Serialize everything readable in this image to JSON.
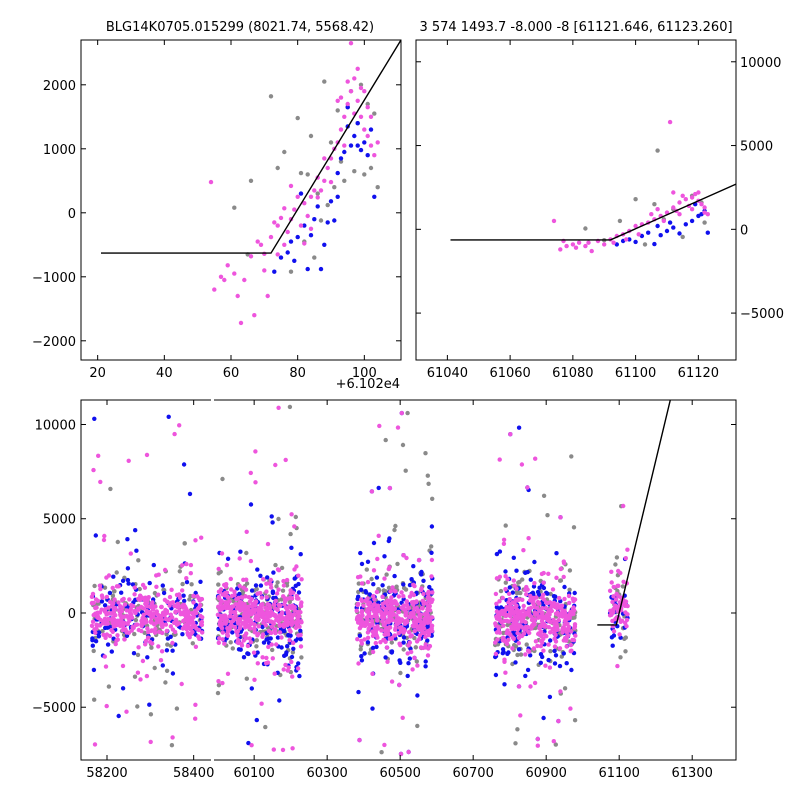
{
  "colors": {
    "gray": "#8a8a8a",
    "blue": "#1010ee",
    "pink": "#ee55dd",
    "model": "#000000"
  },
  "chart_data": [
    {
      "type": "scatter",
      "title": "BLG14K0705.015299 (8021.74, 5568.42)",
      "xlim": [
        15,
        111
      ],
      "ylim": [
        -2300,
        2700
      ],
      "x_offset_label": "+6.102e4",
      "xticks": [
        20,
        40,
        60,
        80,
        100
      ],
      "yticks": [
        -2000,
        -1000,
        0,
        1000,
        2000
      ],
      "xtick_labels": [
        "20",
        "40",
        "60",
        "80",
        "100"
      ],
      "ytick_labels": [
        "−2000",
        "−1000",
        "0",
        "1000",
        "2000"
      ],
      "model": {
        "x": [
          21,
          72,
          111
        ],
        "y": [
          -630,
          -630,
          2700
        ]
      },
      "series": [
        {
          "name": "pink",
          "color_key": "pink",
          "points": [
            [
              54,
              480
            ],
            [
              55,
              -1200
            ],
            [
              57,
              -1000
            ],
            [
              58,
              -1050
            ],
            [
              59,
              -820
            ],
            [
              61,
              -950
            ],
            [
              62,
              -1300
            ],
            [
              63,
              -1720
            ],
            [
              64,
              -1050
            ],
            [
              66,
              -680
            ],
            [
              67,
              -1600
            ],
            [
              68,
              -450
            ],
            [
              69,
              -500
            ],
            [
              70,
              -640
            ],
            [
              71,
              -1300
            ],
            [
              72,
              -380
            ],
            [
              73,
              -150
            ],
            [
              74,
              -200
            ],
            [
              75,
              -80
            ],
            [
              76,
              -500
            ],
            [
              77,
              -300
            ],
            [
              78,
              -100
            ],
            [
              79,
              50
            ],
            [
              80,
              250
            ],
            [
              81,
              -200
            ],
            [
              82,
              150
            ],
            [
              83,
              -50
            ],
            [
              84,
              250
            ],
            [
              85,
              350
            ],
            [
              86,
              550
            ],
            [
              87,
              350
            ],
            [
              88,
              500
            ],
            [
              89,
              700
            ],
            [
              90,
              850
            ],
            [
              91,
              1000
            ],
            [
              92,
              1100
            ],
            [
              93,
              1300
            ],
            [
              94,
              1500
            ],
            [
              95,
              1700
            ],
            [
              96,
              1900
            ],
            [
              97,
              2100
            ],
            [
              98,
              1750
            ],
            [
              99,
              1500
            ],
            [
              100,
              1300
            ],
            [
              101,
              1200
            ],
            [
              102,
              1050
            ],
            [
              103,
              900
            ],
            [
              104,
              1100
            ],
            [
              93,
              1800
            ],
            [
              95,
              2050
            ],
            [
              97,
              1550
            ],
            [
              99,
              1950
            ],
            [
              96,
              2650
            ],
            [
              101,
              1650
            ],
            [
              92,
              1750
            ],
            [
              98,
              2250
            ],
            [
              100,
              1900
            ],
            [
              102,
              1500
            ],
            [
              94,
              1050
            ],
            [
              90,
              480
            ],
            [
              88,
              850
            ],
            [
              86,
              240
            ],
            [
              84,
              -250
            ],
            [
              82,
              -480
            ],
            [
              78,
              420
            ],
            [
              76,
              70
            ],
            [
              74,
              -650
            ],
            [
              70,
              -900
            ]
          ]
        },
        {
          "name": "blue",
          "color_key": "blue",
          "points": [
            [
              73,
              -920
            ],
            [
              75,
              -700
            ],
            [
              77,
              -620
            ],
            [
              79,
              -750
            ],
            [
              80,
              -380
            ],
            [
              82,
              -200
            ],
            [
              83,
              -880
            ],
            [
              84,
              -350
            ],
            [
              85,
              -100
            ],
            [
              86,
              100
            ],
            [
              87,
              -880
            ],
            [
              88,
              -500
            ],
            [
              89,
              -150
            ],
            [
              90,
              180
            ],
            [
              91,
              -120
            ],
            [
              92,
              250
            ],
            [
              93,
              850
            ],
            [
              94,
              950
            ],
            [
              95,
              1350
            ],
            [
              96,
              1050
            ],
            [
              97,
              1200
            ],
            [
              98,
              1400
            ],
            [
              99,
              980
            ],
            [
              100,
              1100
            ],
            [
              101,
              900
            ],
            [
              102,
              1300
            ],
            [
              103,
              250
            ],
            [
              92,
              620
            ],
            [
              95,
              1650
            ],
            [
              98,
              1050
            ],
            [
              81,
              300
            ],
            [
              78,
              -450
            ]
          ]
        },
        {
          "name": "gray",
          "color_key": "gray",
          "points": [
            [
              61,
              80
            ],
            [
              65,
              -650
            ],
            [
              66,
              500
            ],
            [
              72,
              1820
            ],
            [
              74,
              700
            ],
            [
              76,
              950
            ],
            [
              78,
              -920
            ],
            [
              80,
              1480
            ],
            [
              81,
              620
            ],
            [
              82,
              -450
            ],
            [
              83,
              600
            ],
            [
              84,
              1200
            ],
            [
              85,
              -700
            ],
            [
              86,
              300
            ],
            [
              87,
              -120
            ],
            [
              88,
              2050
            ],
            [
              89,
              120
            ],
            [
              90,
              1100
            ],
            [
              91,
              400
            ],
            [
              92,
              1600
            ],
            [
              93,
              800
            ],
            [
              94,
              500
            ],
            [
              95,
              1650
            ],
            [
              96,
              1900
            ],
            [
              97,
              650
            ],
            [
              98,
              1400
            ],
            [
              99,
              2000
            ],
            [
              100,
              600
            ],
            [
              101,
              1700
            ],
            [
              102,
              700
            ],
            [
              103,
              1550
            ],
            [
              104,
              400
            ]
          ]
        }
      ]
    },
    {
      "type": "scatter",
      "title": "3 574 1493.7 -8.000 -8 [61121.646, 61123.260]",
      "xlim": [
        61030,
        61132
      ],
      "ylim": [
        -7800,
        11300
      ],
      "xticks": [
        61040,
        61060,
        61080,
        61100,
        61120
      ],
      "yticks": [
        -5000,
        0,
        5000,
        10000
      ],
      "xtick_labels": [
        "61040",
        "61060",
        "61080",
        "61100",
        "61120"
      ],
      "ytick_labels": [
        "−5000",
        "0",
        "5000",
        "10000"
      ],
      "model": {
        "x": [
          61041,
          61092,
          61132
        ],
        "y": [
          -630,
          -630,
          2700
        ]
      },
      "series": [
        {
          "name": "pink",
          "color_key": "pink",
          "points": [
            [
              61074,
              500
            ],
            [
              61076,
              -1200
            ],
            [
              61078,
              -1000
            ],
            [
              61080,
              -900
            ],
            [
              61082,
              -800
            ],
            [
              61084,
              -1000
            ],
            [
              61086,
              -1300
            ],
            [
              61088,
              -700
            ],
            [
              61090,
              -900
            ],
            [
              61092,
              -600
            ],
            [
              61094,
              -400
            ],
            [
              61096,
              -300
            ],
            [
              61098,
              -100
            ],
            [
              61100,
              200
            ],
            [
              61102,
              300
            ],
            [
              61104,
              400
            ],
            [
              61106,
              600
            ],
            [
              61108,
              800
            ],
            [
              61110,
              1000
            ],
            [
              61112,
              1300
            ],
            [
              61114,
              1600
            ],
            [
              61116,
              1800
            ],
            [
              61118,
              1900
            ],
            [
              61120,
              1700
            ],
            [
              61121,
              1500
            ],
            [
              61122,
              1300
            ],
            [
              61111,
              6400
            ],
            [
              61115,
              2000
            ],
            [
              61117,
              1400
            ],
            [
              61119,
              2100
            ],
            [
              61113,
              1100
            ],
            [
              61101,
              -300
            ],
            [
              61097,
              -600
            ],
            [
              61093,
              -800
            ],
            [
              61105,
              900
            ],
            [
              61107,
              1200
            ],
            [
              61109,
              500
            ],
            [
              61123,
              900
            ],
            [
              61085,
              -800
            ],
            [
              61081,
              -1100
            ],
            [
              61077,
              -700
            ],
            [
              61112,
              2200
            ],
            [
              61118,
              1200
            ],
            [
              61114,
              900
            ],
            [
              61120,
              2200
            ],
            [
              61122,
              1000
            ]
          ]
        },
        {
          "name": "blue",
          "color_key": "blue",
          "points": [
            [
              61094,
              -900
            ],
            [
              61096,
              -700
            ],
            [
              61098,
              -600
            ],
            [
              61100,
              -750
            ],
            [
              61102,
              -400
            ],
            [
              61104,
              -200
            ],
            [
              61106,
              -880
            ],
            [
              61108,
              -350
            ],
            [
              61110,
              -100
            ],
            [
              61112,
              100
            ],
            [
              61114,
              -250
            ],
            [
              61116,
              300
            ],
            [
              61118,
              500
            ],
            [
              61120,
              800
            ],
            [
              61122,
              1100
            ],
            [
              61123,
              -200
            ],
            [
              61107,
              200
            ],
            [
              61111,
              400
            ],
            [
              61119,
              1500
            ],
            [
              61121,
              900
            ]
          ]
        },
        {
          "name": "gray",
          "color_key": "gray",
          "points": [
            [
              61084,
              50
            ],
            [
              61090,
              -650
            ],
            [
              61095,
              500
            ],
            [
              61100,
              1800
            ],
            [
              61103,
              -900
            ],
            [
              61106,
              1500
            ],
            [
              61109,
              600
            ],
            [
              61112,
              1200
            ],
            [
              61115,
              -450
            ],
            [
              61118,
              2000
            ],
            [
              61121,
              1600
            ],
            [
              61107,
              4700
            ],
            [
              61122,
              400
            ]
          ]
        }
      ]
    },
    {
      "type": "scatter",
      "title": "",
      "ylim": [
        -7800,
        11300
      ],
      "yticks": [
        -5000,
        0,
        5000,
        10000
      ],
      "ytick_labels": [
        "−5000",
        "0",
        "5000",
        "10000"
      ],
      "segments": [
        {
          "xlim": [
            58140,
            58440
          ],
          "xticks": [
            58200,
            58400
          ],
          "xtick_labels": [
            "58200",
            "58400"
          ]
        },
        {
          "xlim": [
            59990,
            61420
          ],
          "xticks": [
            60100,
            60300,
            60500,
            60700,
            60900,
            61100,
            61300
          ],
          "xtick_labels": [
            "60100",
            "60300",
            "60500",
            "60700",
            "60900",
            "61100",
            "61300"
          ]
        }
      ],
      "model": {
        "x": [
          61040,
          61092,
          61240
        ],
        "y": [
          -630,
          -630,
          11300
        ]
      },
      "clusters": [
        {
          "x_range": [
            58165,
            58420
          ],
          "y_center": -200,
          "y_spread": 600,
          "outlier_range": [
            -7500,
            11200
          ],
          "n_pink": 380,
          "n_blue": 140,
          "n_gray": 130
        },
        {
          "x_range": [
            60000,
            60230
          ],
          "y_center": -100,
          "y_spread": 650,
          "outlier_range": [
            -7600,
            11200
          ],
          "n_pink": 420,
          "n_blue": 170,
          "n_gray": 150
        },
        {
          "x_range": [
            60380,
            60590
          ],
          "y_center": -150,
          "y_spread": 650,
          "outlier_range": [
            -7700,
            11100
          ],
          "n_pink": 380,
          "n_blue": 200,
          "n_gray": 150
        },
        {
          "x_range": [
            60760,
            60980
          ],
          "y_center": -300,
          "y_spread": 650,
          "outlier_range": [
            -7700,
            11000
          ],
          "n_pink": 400,
          "n_blue": 190,
          "n_gray": 140
        },
        {
          "x_range": [
            61075,
            61123
          ],
          "y_center": 400,
          "y_spread": 650,
          "outlier_range": [
            -1500,
            6400
          ],
          "n_pink": 60,
          "n_blue": 25,
          "n_gray": 20
        }
      ]
    }
  ]
}
